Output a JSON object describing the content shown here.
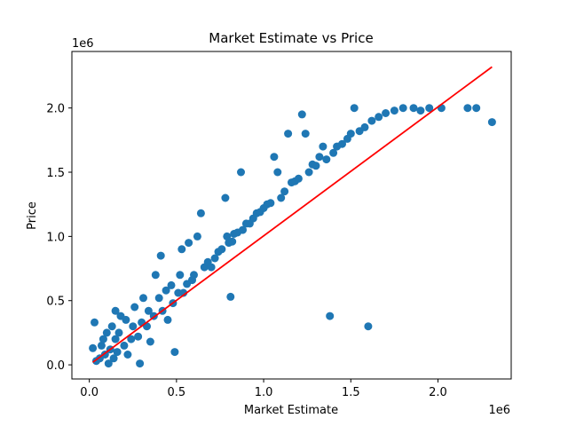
{
  "chart_data": {
    "type": "scatter",
    "title": "Market Estimate vs Price",
    "xlabel": "Market Estimate",
    "ylabel": "Price",
    "x_offset_text": "1e6",
    "y_offset_text": "1e6",
    "xlim": [
      -100000,
      2420000
    ],
    "ylim": [
      -110000,
      2440000
    ],
    "x_ticks": [
      0,
      500000,
      1000000,
      1500000,
      2000000
    ],
    "x_tick_labels": [
      "0.0",
      "0.5",
      "1.0",
      "1.5",
      "2.0"
    ],
    "y_ticks": [
      0,
      500000,
      1000000,
      1500000,
      2000000
    ],
    "y_tick_labels": [
      "0.0",
      "0.5",
      "1.0",
      "1.5",
      "2.0"
    ],
    "grid": false,
    "marker_color": "#1f77b4",
    "line_color": "#ff0000",
    "trend_line": {
      "x": [
        20000,
        2310000
      ],
      "y": [
        20000,
        2320000
      ]
    },
    "points": [
      [
        20000,
        130000
      ],
      [
        30000,
        330000
      ],
      [
        40000,
        30000
      ],
      [
        60000,
        50000
      ],
      [
        70000,
        150000
      ],
      [
        80000,
        200000
      ],
      [
        90000,
        80000
      ],
      [
        100000,
        250000
      ],
      [
        110000,
        10000
      ],
      [
        120000,
        120000
      ],
      [
        130000,
        300000
      ],
      [
        140000,
        50000
      ],
      [
        150000,
        200000
      ],
      [
        150000,
        420000
      ],
      [
        160000,
        100000
      ],
      [
        170000,
        250000
      ],
      [
        180000,
        380000
      ],
      [
        200000,
        150000
      ],
      [
        210000,
        350000
      ],
      [
        220000,
        80000
      ],
      [
        240000,
        200000
      ],
      [
        250000,
        300000
      ],
      [
        260000,
        450000
      ],
      [
        280000,
        220000
      ],
      [
        290000,
        10000
      ],
      [
        300000,
        330000
      ],
      [
        310000,
        520000
      ],
      [
        330000,
        300000
      ],
      [
        340000,
        420000
      ],
      [
        350000,
        180000
      ],
      [
        370000,
        380000
      ],
      [
        380000,
        700000
      ],
      [
        400000,
        520000
      ],
      [
        410000,
        850000
      ],
      [
        420000,
        420000
      ],
      [
        440000,
        580000
      ],
      [
        450000,
        350000
      ],
      [
        470000,
        620000
      ],
      [
        480000,
        480000
      ],
      [
        490000,
        100000
      ],
      [
        510000,
        560000
      ],
      [
        520000,
        700000
      ],
      [
        530000,
        900000
      ],
      [
        540000,
        560000
      ],
      [
        560000,
        630000
      ],
      [
        570000,
        950000
      ],
      [
        590000,
        660000
      ],
      [
        600000,
        700000
      ],
      [
        620000,
        1000000
      ],
      [
        640000,
        1180000
      ],
      [
        660000,
        760000
      ],
      [
        680000,
        800000
      ],
      [
        700000,
        760000
      ],
      [
        720000,
        830000
      ],
      [
        740000,
        880000
      ],
      [
        760000,
        900000
      ],
      [
        780000,
        1300000
      ],
      [
        790000,
        1000000
      ],
      [
        800000,
        950000
      ],
      [
        810000,
        530000
      ],
      [
        820000,
        960000
      ],
      [
        830000,
        1020000
      ],
      [
        850000,
        1030000
      ],
      [
        870000,
        1500000
      ],
      [
        880000,
        1050000
      ],
      [
        900000,
        1100000
      ],
      [
        920000,
        1100000
      ],
      [
        940000,
        1140000
      ],
      [
        960000,
        1180000
      ],
      [
        980000,
        1190000
      ],
      [
        1000000,
        1220000
      ],
      [
        1020000,
        1250000
      ],
      [
        1040000,
        1260000
      ],
      [
        1060000,
        1620000
      ],
      [
        1080000,
        1500000
      ],
      [
        1100000,
        1300000
      ],
      [
        1120000,
        1350000
      ],
      [
        1140000,
        1800000
      ],
      [
        1160000,
        1420000
      ],
      [
        1180000,
        1430000
      ],
      [
        1200000,
        1450000
      ],
      [
        1220000,
        1950000
      ],
      [
        1240000,
        1800000
      ],
      [
        1260000,
        1500000
      ],
      [
        1280000,
        1560000
      ],
      [
        1300000,
        1550000
      ],
      [
        1320000,
        1620000
      ],
      [
        1340000,
        1700000
      ],
      [
        1360000,
        1600000
      ],
      [
        1380000,
        380000
      ],
      [
        1400000,
        1650000
      ],
      [
        1420000,
        1700000
      ],
      [
        1450000,
        1720000
      ],
      [
        1480000,
        1760000
      ],
      [
        1500000,
        1800000
      ],
      [
        1520000,
        2000000
      ],
      [
        1550000,
        1820000
      ],
      [
        1580000,
        1850000
      ],
      [
        1600000,
        300000
      ],
      [
        1620000,
        1900000
      ],
      [
        1660000,
        1930000
      ],
      [
        1700000,
        1960000
      ],
      [
        1750000,
        1980000
      ],
      [
        1800000,
        2000000
      ],
      [
        1860000,
        2000000
      ],
      [
        1900000,
        1980000
      ],
      [
        1950000,
        2000000
      ],
      [
        2020000,
        2000000
      ],
      [
        2170000,
        2000000
      ],
      [
        2220000,
        2000000
      ],
      [
        2310000,
        1890000
      ]
    ]
  }
}
